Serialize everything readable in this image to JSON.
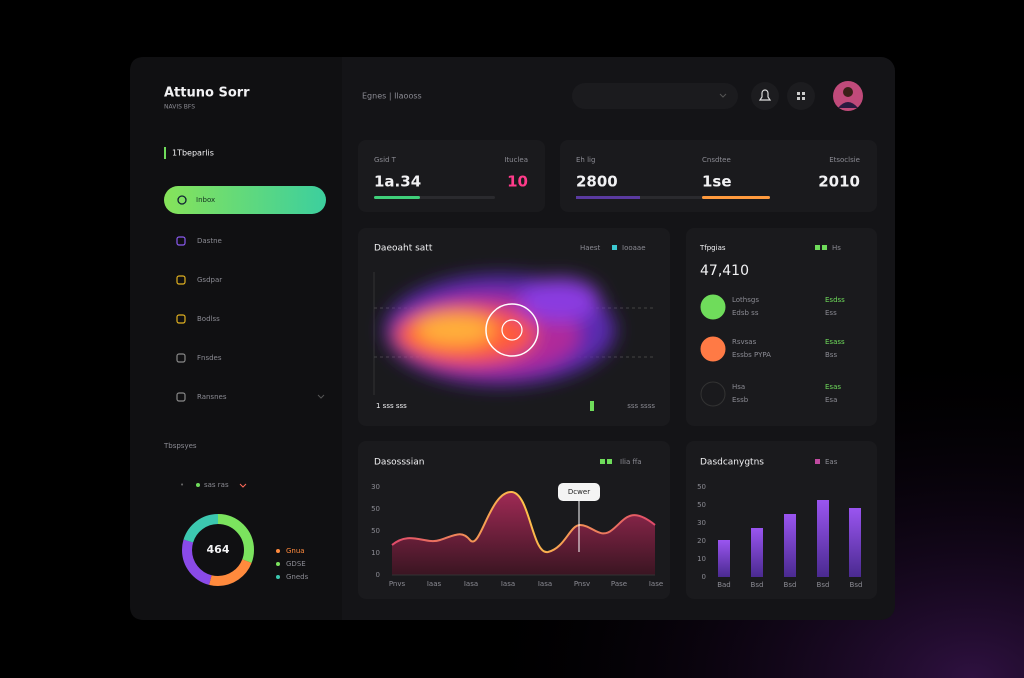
{
  "sidebar": {
    "brand": "Attuno Sorr",
    "brand_sub": "NAVIS BFS",
    "section": "1Tbeparlis",
    "nav": [
      "Inbox",
      "Dastne",
      "Gsdpar",
      "Bodlss",
      "Fnsdes",
      "Ransnes"
    ],
    "section2": "Tbspsyes",
    "mini_legend": "sas ras",
    "donut_center": "464",
    "donut_legend": [
      "Gnua",
      "GDSE",
      "Gneds"
    ]
  },
  "header": {
    "breadcrumb": "Egnes | Ilaooss"
  },
  "stats": [
    {
      "label": "Gsid T",
      "value": "1a.34"
    },
    {
      "label": "Ituclea",
      "value": "10"
    },
    {
      "label": "Eh lig",
      "value": "2800"
    },
    {
      "label": "Cnsdtee",
      "value": "1se"
    },
    {
      "label": "Etsoclsie",
      "value": "2010"
    }
  ],
  "heatmap": {
    "title": "Daeoaht satt",
    "legend": [
      "Haest",
      "Iooaae"
    ],
    "footer_left": "1 sss sss",
    "footer_right": "sss ssss"
  },
  "activity": {
    "title": "Tfpgias",
    "legend": "Hs",
    "total": "47,410",
    "items": [
      {
        "name": "Lothsgs",
        "sub": "Edsb ss",
        "value": "Esdss",
        "value2": "Ess"
      },
      {
        "name": "Rsvsas",
        "sub": "Essbs PYPA",
        "value": "Esass",
        "value2": "Bss"
      },
      {
        "name": "Hsa",
        "sub": "Essb",
        "value": "Esas",
        "value2": "Esa"
      }
    ]
  },
  "line_card": {
    "title": "Dasosssian",
    "legend": "Ilia ffa",
    "tooltip": "Dcwer",
    "y_labels": [
      "30",
      "50",
      "50",
      "10",
      "0"
    ],
    "x_labels": [
      "Pnvs",
      "Iaas",
      "Iasa",
      "Iasa",
      "Iasa",
      "Pnsv",
      "Pase",
      "Iase"
    ]
  },
  "bar_card": {
    "title": "Dasdcanygtns",
    "legend": "Eas",
    "y_labels": [
      "50",
      "50",
      "30",
      "20",
      "10",
      "0"
    ],
    "x_labels": [
      "Bad",
      "Bsd",
      "Bsd",
      "Bsd",
      "Bsd"
    ]
  }
}
